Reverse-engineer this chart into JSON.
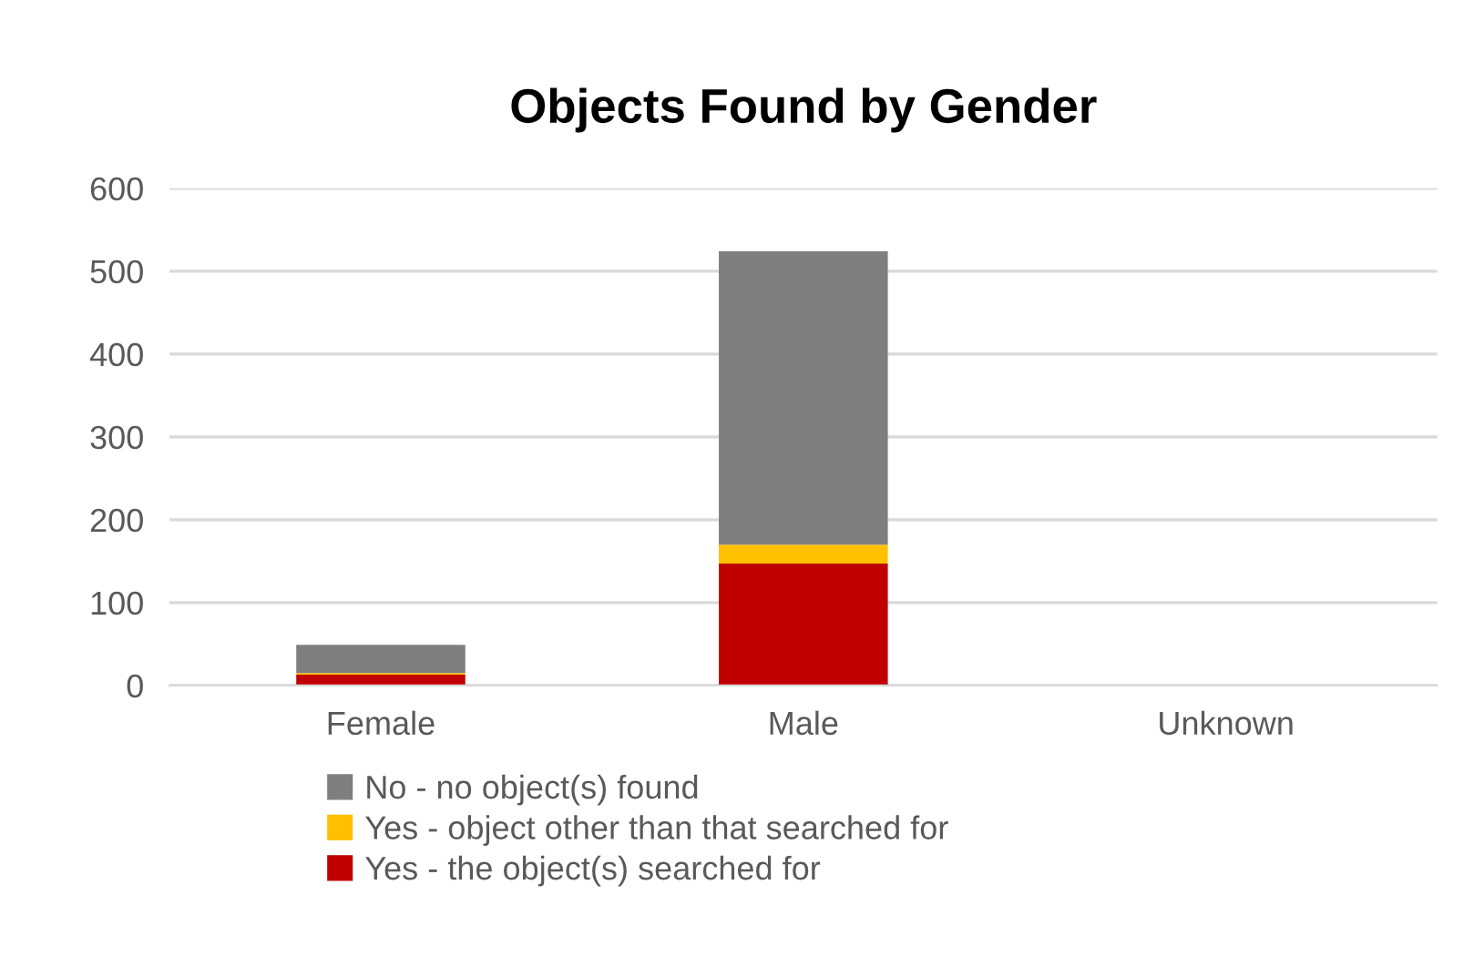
{
  "chart_data": {
    "type": "bar",
    "title": "Objects Found by Gender",
    "stacked": true,
    "categories": [
      "Female",
      "Male",
      "Unknown"
    ],
    "series": [
      {
        "name": "Yes - the object(s) searched for",
        "color": "#c00000",
        "values": [
          13,
          147,
          null
        ]
      },
      {
        "name": "Yes - object other than that searched for",
        "color": "#ffc000",
        "values": [
          2,
          23,
          null
        ]
      },
      {
        "name": "No - no object(s) found",
        "color": "#7f7f7f",
        "values": [
          34,
          354,
          null
        ]
      }
    ],
    "ylim": [
      0,
      600
    ],
    "yticks": [
      0,
      100,
      200,
      300,
      400,
      500,
      600
    ],
    "grid": "y",
    "legend": "bottom"
  }
}
